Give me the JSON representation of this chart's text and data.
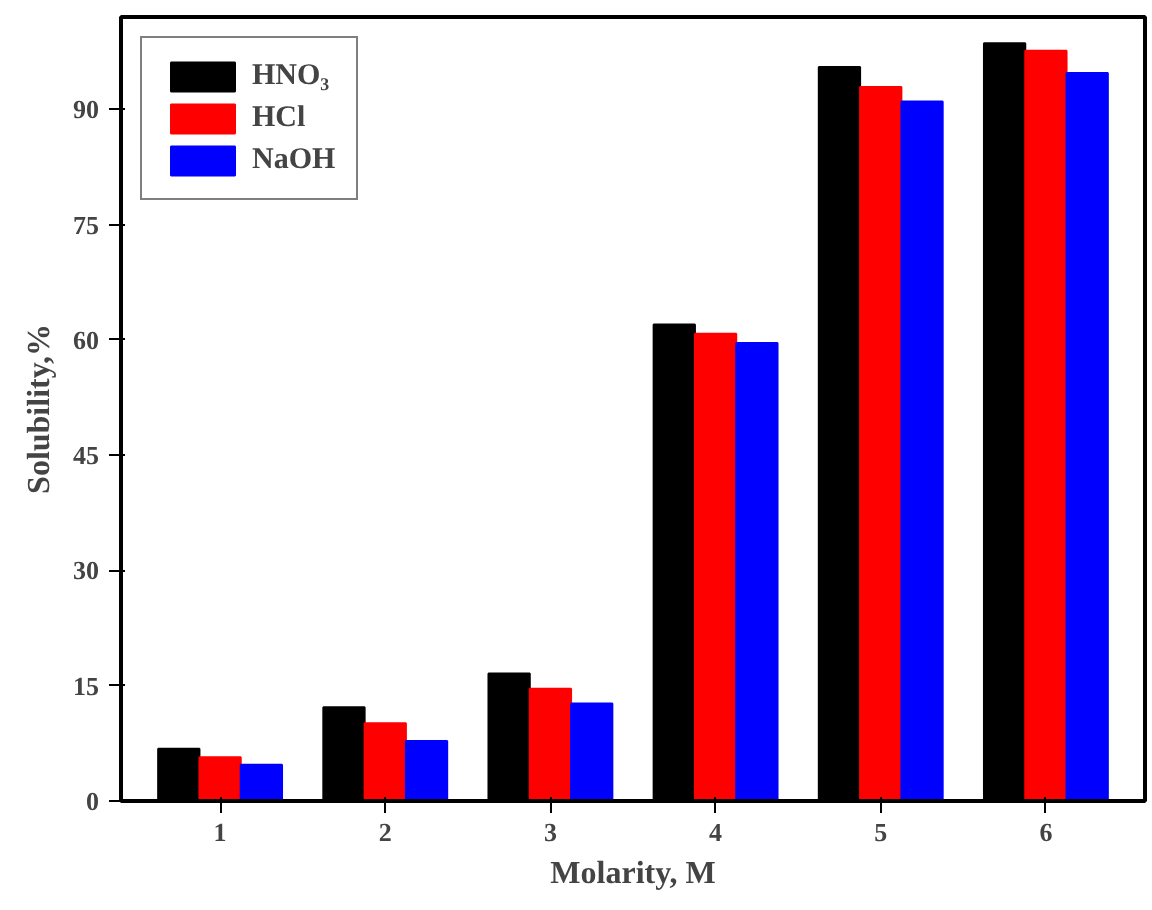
{
  "chart_data": {
    "type": "bar",
    "xlabel": "Molarity, M",
    "ylabel": "Solubility,%",
    "categories": [
      "1",
      "2",
      "3",
      "4",
      "5",
      "6"
    ],
    "series": [
      {
        "name": "HNO₃",
        "color": "#000000",
        "values": [
          6.8,
          12.2,
          16.6,
          62,
          95.5,
          98.6
        ]
      },
      {
        "name": "HCl",
        "color": "#ff0000",
        "values": [
          5.7,
          10.1,
          14.6,
          60.8,
          92.9,
          97.6
        ]
      },
      {
        "name": "NaOH",
        "color": "#0000ff",
        "values": [
          4.7,
          7.8,
          12.7,
          59.6,
          91,
          94.7
        ]
      }
    ],
    "ylim": [
      0,
      102
    ],
    "yticks": [
      0,
      15,
      30,
      45,
      60,
      75,
      90
    ],
    "grid": false,
    "legend": "top left"
  }
}
